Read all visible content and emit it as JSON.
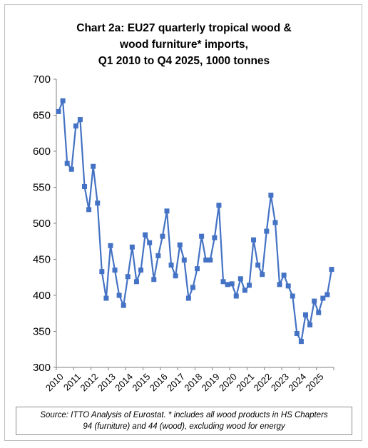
{
  "chart_data": {
    "type": "line",
    "title_lines": [
      "Chart 2a: EU27 quarterly tropical wood &",
      "wood furniture* imports,",
      "Q1 2010 to Q4 2025, 1000 tonnes"
    ],
    "ylim": [
      300,
      700
    ],
    "yticks": [
      300,
      350,
      400,
      450,
      500,
      550,
      600,
      650,
      700
    ],
    "xtick_labels": [
      "2010",
      "2011",
      "2012",
      "2013",
      "2014",
      "2015",
      "2016",
      "2017",
      "2018",
      "2019",
      "2020",
      "2021",
      "2022",
      "2023",
      "2024",
      "2025"
    ],
    "grid": false,
    "legend": "none",
    "series": [
      {
        "color": "#4472c4",
        "marker": "square",
        "values": [
          655,
          670,
          583,
          575,
          635,
          644,
          551,
          519,
          579,
          528,
          433,
          396,
          469,
          435,
          400,
          386,
          426,
          467,
          419,
          435,
          484,
          473,
          422,
          455,
          482,
          517,
          442,
          427,
          470,
          449,
          396,
          411,
          437,
          482,
          449,
          449,
          480,
          525,
          419,
          415,
          416,
          399,
          423,
          407,
          414,
          477,
          442,
          429,
          489,
          539,
          501,
          415,
          428,
          413,
          399,
          347,
          336,
          373,
          359,
          392,
          376,
          396,
          401,
          436
        ]
      }
    ]
  },
  "footer": {
    "source_line1": "Source: ITTO Analysis of Eurostat. * includes all wood products in HS Chapters",
    "source_line2": "94 (furniture) and 44 (wood), excluding wood for energy"
  }
}
